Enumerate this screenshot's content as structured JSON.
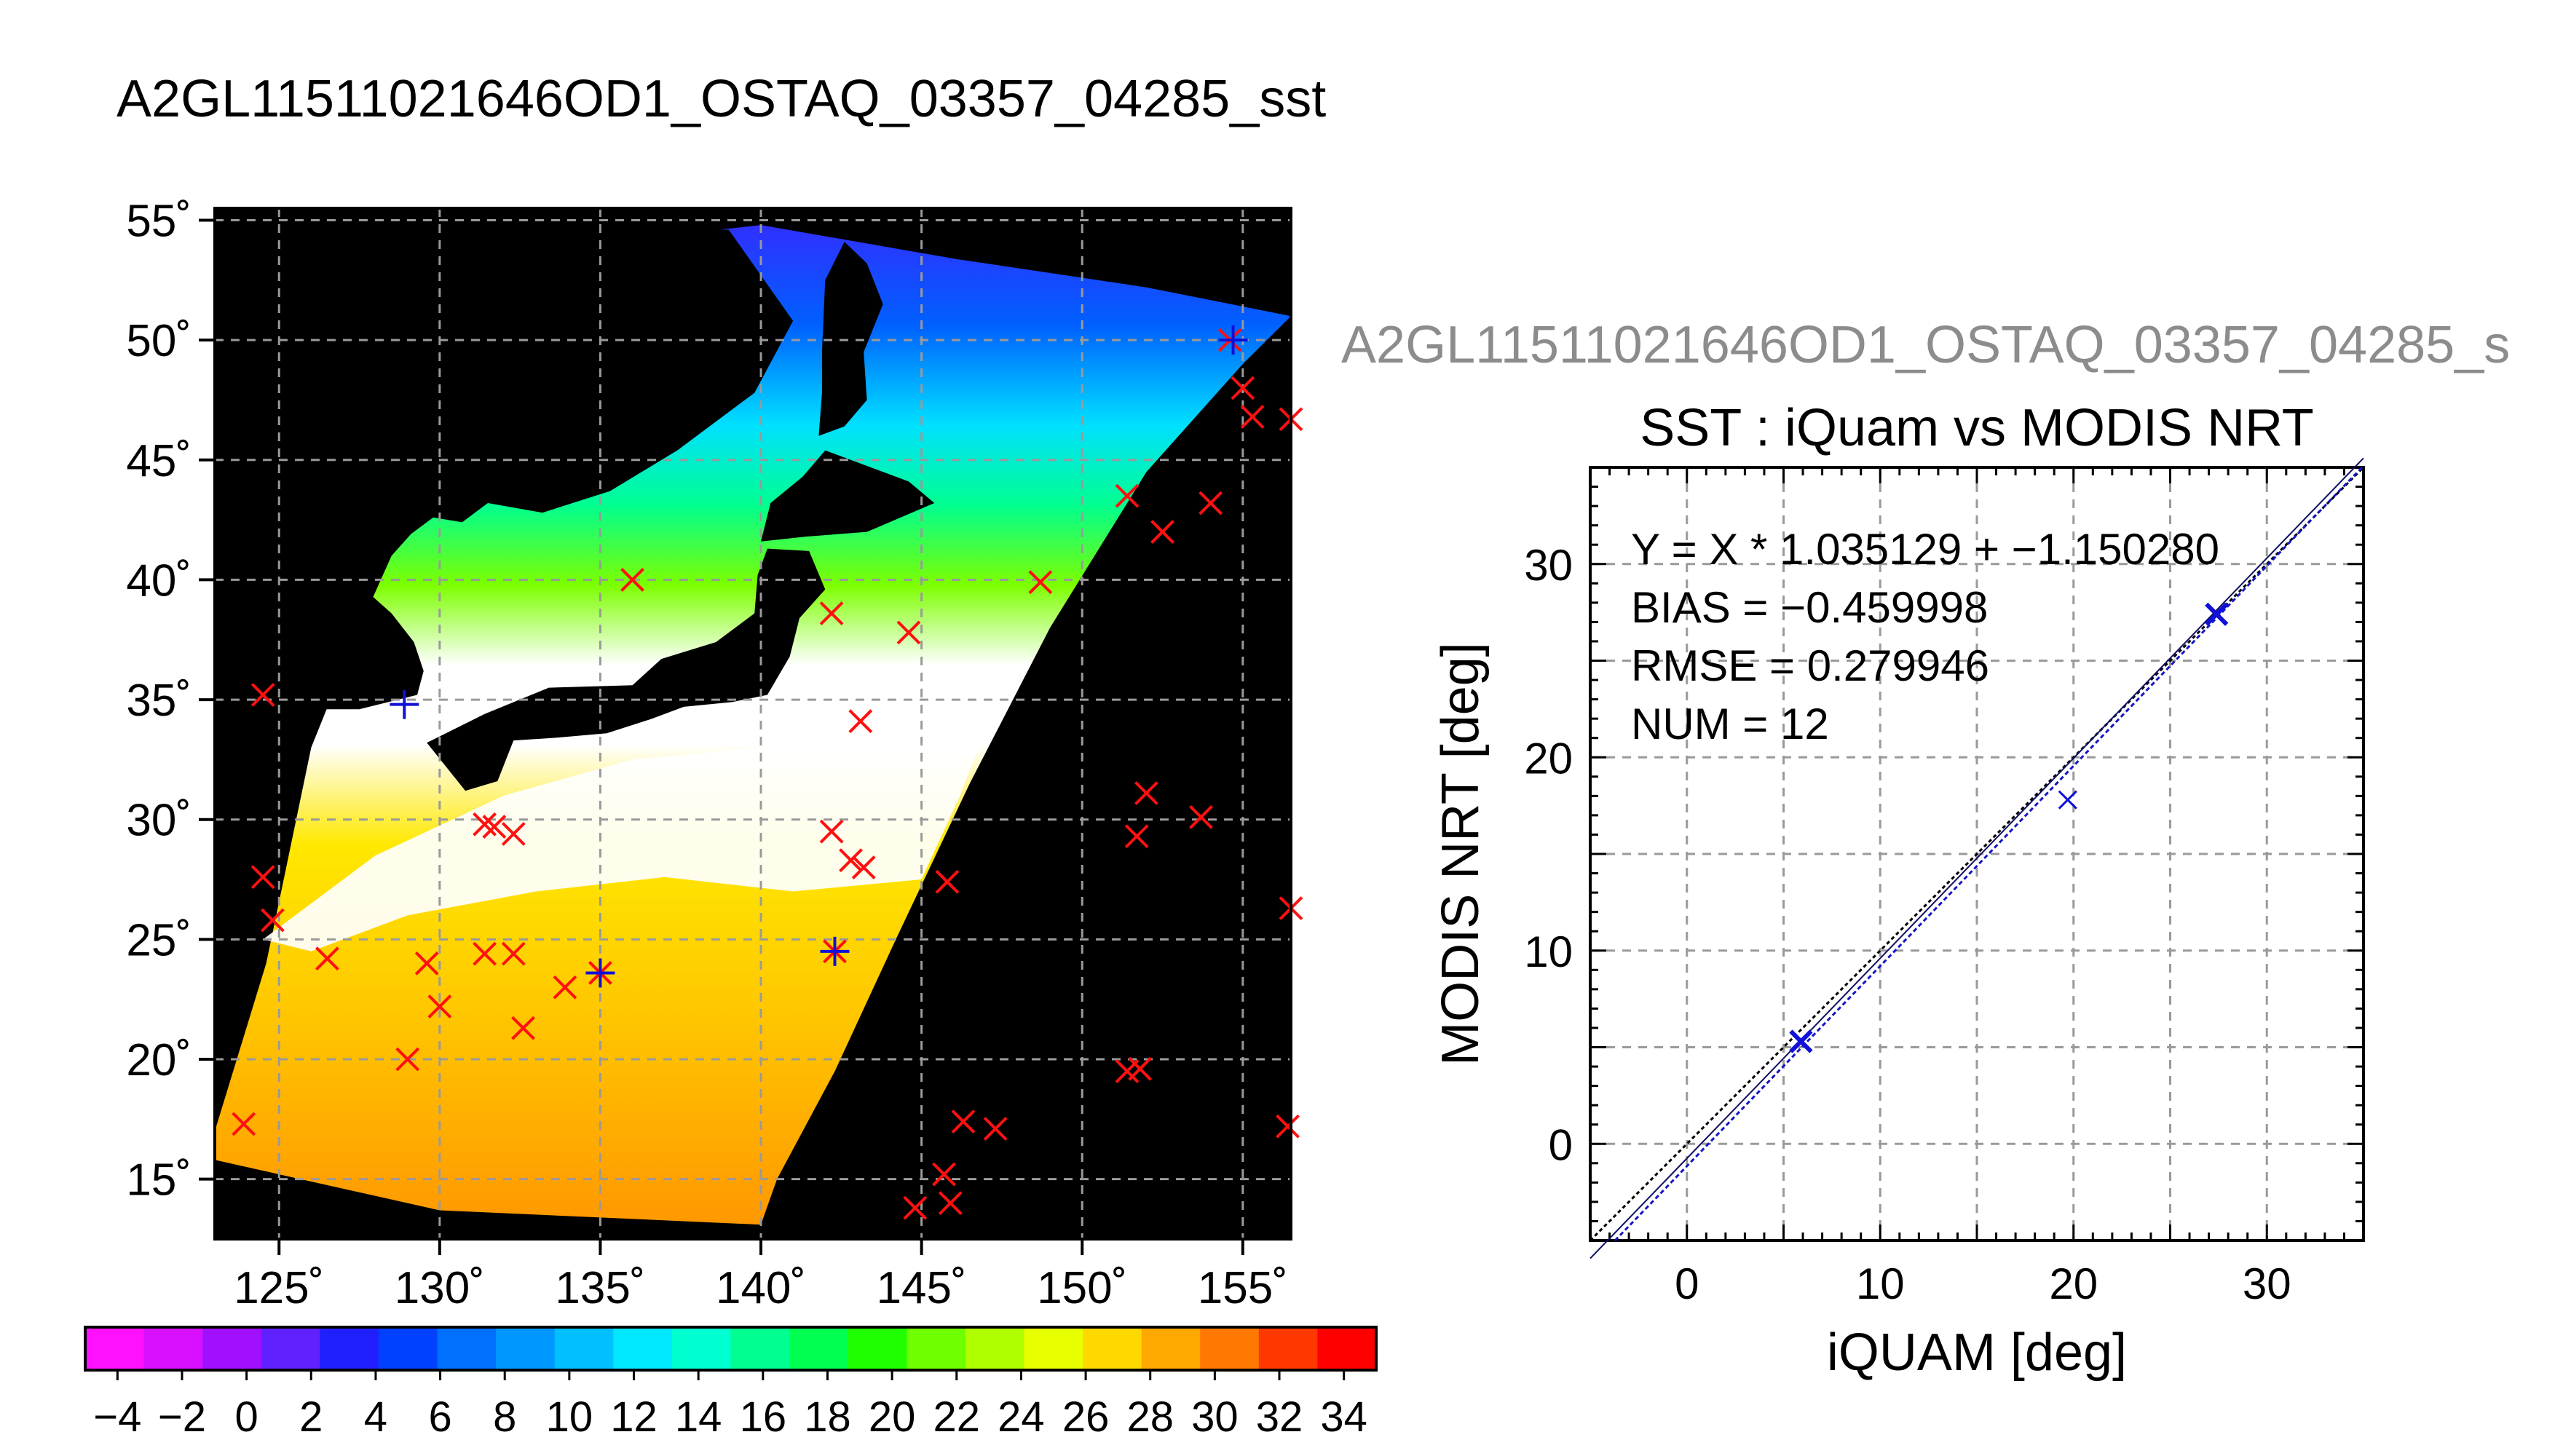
{
  "page": {
    "map_title": "A2GL11511021646OD1_OSTAQ_03357_04285_sst",
    "scatter_header": "A2GL11511021646OD1_OSTAQ_03357_04285_s"
  },
  "colors": {
    "background": "#ffffff",
    "land": "#000000",
    "cloud": "#ffffff",
    "grid": "#9a9a9a",
    "red_marker": "#ff1010",
    "blue_marker": "#1010d8",
    "header_gray": "#8c8c8c",
    "regression_line": "#1515c8",
    "identity_line": "#000000"
  },
  "chart_data": [
    {
      "type": "heatmap",
      "description_free": true,
      "x_ticks": [
        "125˚",
        "130˚",
        "135˚",
        "140˚",
        "145˚",
        "150˚",
        "155˚"
      ],
      "x_tick_values": [
        125,
        130,
        135,
        140,
        145,
        150,
        155
      ],
      "y_ticks": [
        "15˚",
        "20˚",
        "25˚",
        "30˚",
        "35˚",
        "40˚",
        "45˚",
        "50˚",
        "55˚"
      ],
      "y_tick_values": [
        15,
        20,
        25,
        30,
        35,
        40,
        45,
        50,
        55
      ],
      "xlim": [
        123,
        156.5
      ],
      "ylim": [
        12.5,
        55.5
      ],
      "grid": true,
      "red_markers": [
        [
          124.5,
          35.2
        ],
        [
          124.5,
          27.6
        ],
        [
          124.8,
          25.8
        ],
        [
          126.5,
          24.2
        ],
        [
          129.0,
          20.0
        ],
        [
          129.6,
          24.0
        ],
        [
          130.0,
          22.2
        ],
        [
          131.4,
          24.4
        ],
        [
          131.4,
          29.8
        ],
        [
          131.7,
          29.7
        ],
        [
          132.3,
          24.4
        ],
        [
          132.3,
          29.4
        ],
        [
          132.6,
          21.3
        ],
        [
          133.9,
          23.0
        ],
        [
          135.0,
          23.6
        ],
        [
          136.0,
          40.0
        ],
        [
          144.6,
          37.8
        ],
        [
          148.7,
          39.9
        ],
        [
          142.2,
          38.6
        ],
        [
          143.1,
          34.1
        ],
        [
          142.2,
          29.5
        ],
        [
          142.8,
          28.3
        ],
        [
          143.2,
          28.0
        ],
        [
          142.3,
          24.5
        ],
        [
          145.8,
          27.4
        ],
        [
          144.8,
          13.8
        ],
        [
          145.7,
          15.2
        ],
        [
          145.9,
          14.0
        ],
        [
          146.3,
          17.4
        ],
        [
          147.3,
          17.1
        ],
        [
          151.4,
          43.5
        ],
        [
          152.5,
          42.0
        ],
        [
          154.0,
          43.2
        ],
        [
          155.0,
          48.0
        ],
        [
          155.3,
          46.8
        ],
        [
          156.5,
          46.7
        ],
        [
          151.7,
          29.3
        ],
        [
          152.0,
          31.1
        ],
        [
          153.7,
          30.1
        ],
        [
          151.4,
          19.5
        ],
        [
          151.8,
          19.6
        ],
        [
          156.4,
          17.2
        ],
        [
          156.5,
          26.3
        ],
        [
          123.9,
          17.3
        ],
        [
          154.6,
          50.0
        ]
      ],
      "blue_markers": [
        [
          128.9,
          34.8
        ],
        [
          135.0,
          23.6
        ],
        [
          142.3,
          24.5
        ],
        [
          154.7,
          50.0
        ]
      ],
      "colorbar": {
        "labels": [
          "−4",
          "−2",
          "0",
          "2",
          "4",
          "6",
          "8",
          "10",
          "12",
          "14",
          "16",
          "18",
          "20",
          "22",
          "24",
          "26",
          "28",
          "30",
          "32",
          "34"
        ],
        "min": -5,
        "max": 35,
        "colors": [
          "#ff10ff",
          "#d810ff",
          "#a010ff",
          "#6020ff",
          "#2020ff",
          "#0040ff",
          "#0070ff",
          "#0098ff",
          "#00c0ff",
          "#00e8ff",
          "#00ffd0",
          "#00ff90",
          "#00ff50",
          "#20ff00",
          "#70ff00",
          "#b0ff00",
          "#e8ff00",
          "#ffd800",
          "#ffa800",
          "#ff7800",
          "#ff3800",
          "#ff0000"
        ]
      }
    },
    {
      "type": "scatter",
      "title": "SST : iQuam vs MODIS NRT",
      "xlabel": "iQUAM [deg]",
      "ylabel": "MODIS NRT [deg]",
      "xlim": [
        -5,
        35
      ],
      "ylim": [
        -5,
        35
      ],
      "x_ticks": [
        0,
        10,
        20,
        30
      ],
      "y_ticks": [
        0,
        10,
        20,
        30
      ],
      "grid": true,
      "stats": [
        "Y = X * 1.035129 + −1.150280",
        "BIAS = −0.459998",
        "RMSE = 0.279946",
        "NUM = 12"
      ],
      "regression": {
        "slope": 1.035129,
        "intercept": -1.15028
      },
      "points": [
        {
          "x": 5.9,
          "y": 5.3,
          "bold": true
        },
        {
          "x": 19.7,
          "y": 17.8,
          "bold": false
        },
        {
          "x": 27.4,
          "y": 27.4,
          "bold": true
        }
      ]
    }
  ]
}
